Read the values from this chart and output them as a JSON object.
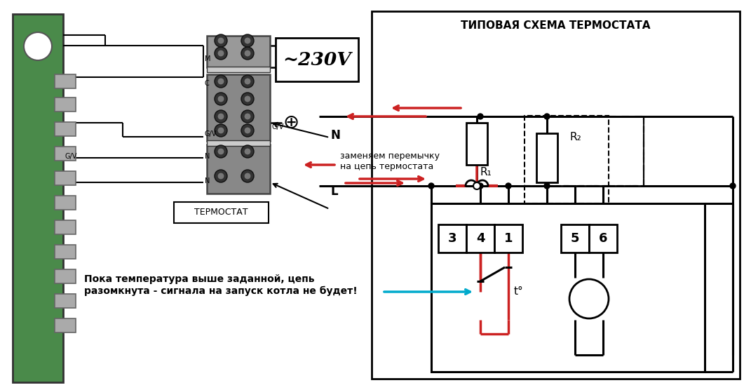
{
  "bg_color": "#ffffff",
  "title_right": "ТИПОВАЯ СХЕМА ТЕРМОСТАТА",
  "label_thermostat": "ТЕРМОСТАТ",
  "label_230v": "~230V",
  "label_N": "N",
  "label_L": "L",
  "label_R1": "R₁",
  "label_R2": "R₂",
  "label_GV": "G/V",
  "label_M": "M",
  "label_C": "C",
  "annotation_text": "заменяем перемычку\nна цепь термостата",
  "bottom_text": "Пока температура выше заданной, цепь\nразомкнута - сигнала на запуск котла не будет!",
  "line_color": "#000000",
  "red_color": "#cc2222",
  "cyan_color": "#00aacc",
  "board_green": "#4a8a4a",
  "board_dark": "#2a5a2a",
  "connector_gray": "#888888",
  "connector_dark": "#555555"
}
